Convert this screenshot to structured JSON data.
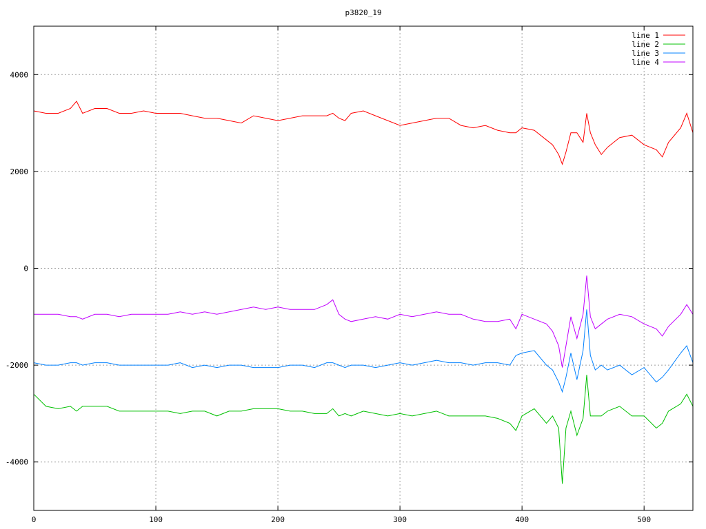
{
  "chart_data": {
    "type": "line",
    "title": "p3820_19",
    "xlabel": "",
    "ylabel": "",
    "xlim": [
      0,
      540
    ],
    "ylim": [
      -5000,
      5000
    ],
    "grid": true,
    "legend_position": "top-right",
    "x_ticks": [
      0,
      100,
      200,
      300,
      400,
      500
    ],
    "y_ticks": [
      4000,
      2000,
      0,
      -2000,
      -4000
    ],
    "x_tick_labels": [
      "0",
      "100",
      "200",
      "300",
      "400",
      "500"
    ],
    "y_tick_labels": [
      "4000",
      "2000",
      "0",
      "-2000",
      "-4000"
    ],
    "x": [
      0,
      10,
      20,
      30,
      35,
      40,
      50,
      60,
      70,
      80,
      90,
      100,
      110,
      120,
      130,
      140,
      150,
      160,
      170,
      180,
      190,
      200,
      210,
      220,
      230,
      240,
      245,
      250,
      255,
      260,
      270,
      280,
      290,
      300,
      310,
      320,
      330,
      340,
      350,
      360,
      370,
      380,
      390,
      395,
      400,
      410,
      420,
      425,
      430,
      433,
      436,
      440,
      445,
      450,
      453,
      456,
      460,
      465,
      470,
      480,
      490,
      500,
      510,
      515,
      520,
      530,
      535,
      540
    ],
    "series": [
      {
        "name": "line 1",
        "color": "#ff0000",
        "values": [
          3250,
          3200,
          3200,
          3300,
          3450,
          3200,
          3300,
          3300,
          3200,
          3200,
          3250,
          3200,
          3200,
          3200,
          3150,
          3100,
          3100,
          3050,
          3000,
          3150,
          3100,
          3050,
          3100,
          3150,
          3150,
          3150,
          3200,
          3100,
          3050,
          3200,
          3250,
          3150,
          3050,
          2950,
          3000,
          3050,
          3100,
          3100,
          2950,
          2900,
          2950,
          2850,
          2800,
          2800,
          2900,
          2850,
          2650,
          2550,
          2350,
          2150,
          2400,
          2800,
          2800,
          2600,
          3200,
          2800,
          2550,
          2350,
          2500,
          2700,
          2750,
          2550,
          2450,
          2300,
          2600,
          2900,
          3200,
          2800
        ]
      },
      {
        "name": "line 2",
        "color": "#00c000",
        "values": [
          -2600,
          -2850,
          -2900,
          -2850,
          -2950,
          -2850,
          -2850,
          -2850,
          -2950,
          -2950,
          -2950,
          -2950,
          -2950,
          -3000,
          -2950,
          -2950,
          -3050,
          -2950,
          -2950,
          -2900,
          -2900,
          -2900,
          -2950,
          -2950,
          -3000,
          -3000,
          -2900,
          -3050,
          -3000,
          -3050,
          -2950,
          -3000,
          -3050,
          -3000,
          -3050,
          -3000,
          -2950,
          -3050,
          -3050,
          -3050,
          -3050,
          -3100,
          -3200,
          -3350,
          -3050,
          -2900,
          -3200,
          -3050,
          -3300,
          -4450,
          -3300,
          -2950,
          -3450,
          -3100,
          -2200,
          -3050,
          -3050,
          -3050,
          -2950,
          -2850,
          -3050,
          -3050,
          -3300,
          -3200,
          -2950,
          -2800,
          -2600,
          -2850
        ]
      },
      {
        "name": "line 3",
        "color": "#0080ff",
        "values": [
          -1950,
          -2000,
          -2000,
          -1950,
          -1950,
          -2000,
          -1950,
          -1950,
          -2000,
          -2000,
          -2000,
          -2000,
          -2000,
          -1950,
          -2050,
          -2000,
          -2050,
          -2000,
          -2000,
          -2050,
          -2050,
          -2050,
          -2000,
          -2000,
          -2050,
          -1950,
          -1950,
          -2000,
          -2050,
          -2000,
          -2000,
          -2050,
          -2000,
          -1950,
          -2000,
          -1950,
          -1900,
          -1950,
          -1950,
          -2000,
          -1950,
          -1950,
          -2000,
          -1800,
          -1750,
          -1700,
          -2000,
          -2100,
          -2350,
          -2550,
          -2250,
          -1750,
          -2300,
          -1700,
          -850,
          -1800,
          -2100,
          -2000,
          -2100,
          -2000,
          -2200,
          -2050,
          -2350,
          -2250,
          -2100,
          -1750,
          -1600,
          -1950
        ]
      },
      {
        "name": "line 4",
        "color": "#c000ff",
        "values": [
          -950,
          -950,
          -950,
          -1000,
          -1000,
          -1050,
          -950,
          -950,
          -1000,
          -950,
          -950,
          -950,
          -950,
          -900,
          -950,
          -900,
          -950,
          -900,
          -850,
          -800,
          -850,
          -800,
          -850,
          -850,
          -850,
          -750,
          -650,
          -950,
          -1050,
          -1100,
          -1050,
          -1000,
          -1050,
          -950,
          -1000,
          -950,
          -900,
          -950,
          -950,
          -1050,
          -1100,
          -1100,
          -1050,
          -1250,
          -950,
          -1050,
          -1150,
          -1300,
          -1600,
          -2050,
          -1600,
          -1000,
          -1450,
          -950,
          -150,
          -1000,
          -1250,
          -1150,
          -1050,
          -950,
          -1000,
          -1150,
          -1250,
          -1400,
          -1200,
          -950,
          -750,
          -950
        ]
      }
    ]
  }
}
